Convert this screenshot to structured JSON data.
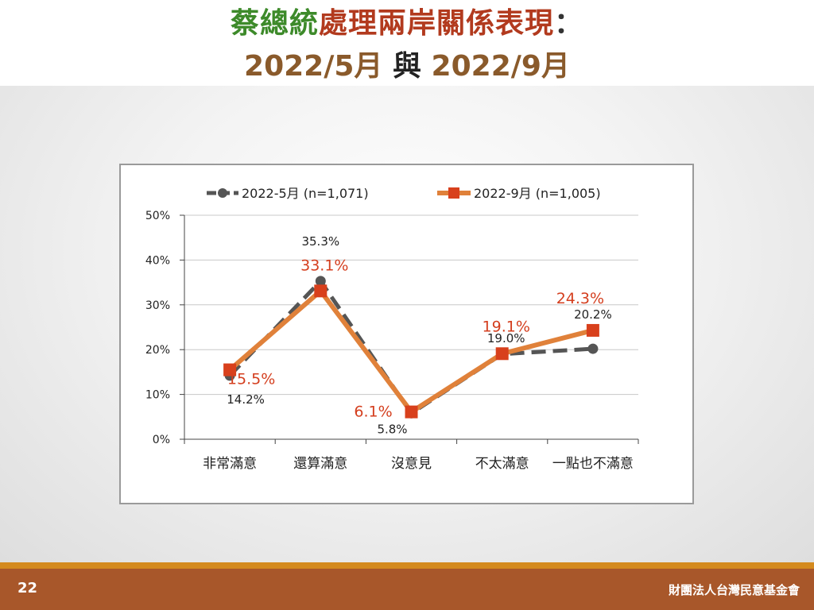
{
  "title": {
    "part1": "蔡總統",
    "part2": "處理兩岸關係表現",
    "colon": "：",
    "date1": "2022/5月",
    "connector": "與",
    "date2": "2022/9月"
  },
  "colors": {
    "title_green": "#3d8a2a",
    "title_red": "#b23a1e",
    "title_brown": "#8a5a2b",
    "series_may": "#555555",
    "series_sep_line": "#e0813a",
    "series_sep_marker": "#d8401c",
    "label_red": "#d43e1e",
    "footer": "#a8572a",
    "footer_stripe": "#d48a1e"
  },
  "chart_data": {
    "type": "line",
    "categories": [
      "非常滿意",
      "還算滿意",
      "沒意見",
      "不太滿意",
      "一點也不滿意"
    ],
    "series": [
      {
        "name": "2022-5月  (n=1,071)",
        "values": [
          14.2,
          35.3,
          5.8,
          19.0,
          20.2
        ],
        "labels": [
          "14.2%",
          "35.3%",
          "5.8%",
          "19.0%",
          "20.2%"
        ],
        "style": "dashed",
        "marker": "circle"
      },
      {
        "name": "2022-9月  (n=1,005)",
        "values": [
          15.5,
          33.1,
          6.1,
          19.1,
          24.3
        ],
        "labels": [
          "15.5%",
          "33.1%",
          "6.1%",
          "19.1%",
          "24.3%"
        ],
        "style": "solid",
        "marker": "square"
      }
    ],
    "ylim": [
      0,
      50
    ],
    "yticks": [
      0,
      10,
      20,
      30,
      40,
      50
    ],
    "ytick_labels": [
      "0%",
      "10%",
      "20%",
      "30%",
      "40%",
      "50%"
    ],
    "legend_position": "top",
    "grid": true
  },
  "footer": {
    "page_number": "22",
    "organization": "財團法人台灣民意基金會"
  }
}
